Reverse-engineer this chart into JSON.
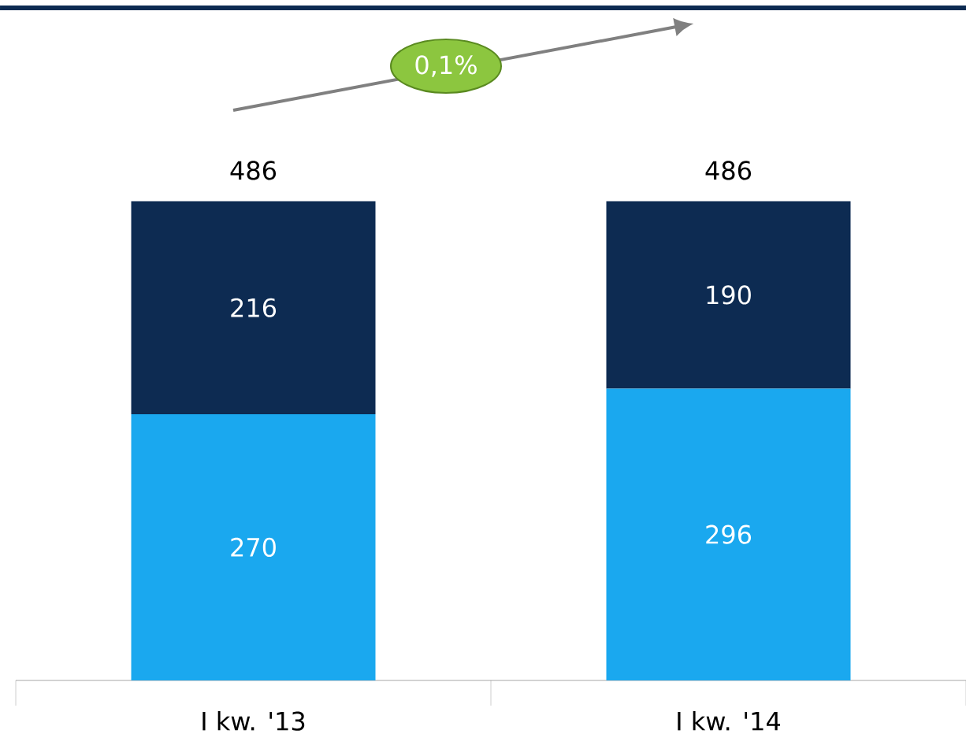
{
  "chart_data": {
    "type": "bar",
    "stacked": true,
    "categories": [
      "I kw. '13",
      "I kw. '14"
    ],
    "series": [
      {
        "color": "#1aa8ef",
        "values": [
          270,
          296
        ]
      },
      {
        "color": "#0d2b52",
        "values": [
          216,
          190
        ]
      }
    ],
    "data_labels": true,
    "totals": [
      "486",
      "486"
    ],
    "annotations": [
      "0,1%"
    ]
  }
}
